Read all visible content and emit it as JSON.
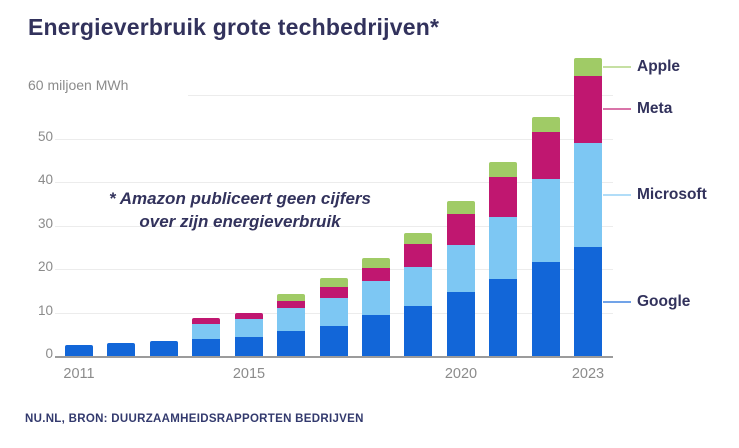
{
  "page": {
    "title": "Energieverbruik grote techbedrijven*"
  },
  "y_axis": {
    "unit_label": "60 miljoen MWh",
    "ticks": [
      0,
      10,
      20,
      30,
      40,
      50
    ],
    "top_gridline_value": 60
  },
  "x_axis": {
    "labels": [
      {
        "text": "2011",
        "index": 0
      },
      {
        "text": "2015",
        "index": 4
      },
      {
        "text": "2020",
        "index": 9
      },
      {
        "text": "2023",
        "index": 12
      }
    ]
  },
  "annotation": {
    "line1": "* Amazon publiceert geen cijfers",
    "line2": "over zijn energieverbruik"
  },
  "legend": {
    "items": [
      "Apple",
      "Meta",
      "Microsoft",
      "Google"
    ]
  },
  "source_note": "NU.NL, BRON: DUURZAAMHEIDSRAPPORTEN BEDRIJVEN",
  "colors": {
    "google": "#1266d8",
    "microsoft": "#7dc7f3",
    "meta": "#c01770",
    "apple": "#a0cb66",
    "title_text": "#32325c",
    "axis_text": "#8b8b8b",
    "gridline": "#ececec",
    "axis_line": "#9b9b9b"
  },
  "chart_data": {
    "type": "bar",
    "stacked": true,
    "title": "Energieverbruik grote techbedrijven*",
    "ylabel": "miljoen MWh",
    "ylim": [
      0,
      70
    ],
    "grid": true,
    "legend_position": "right",
    "categories": [
      2011,
      2012,
      2013,
      2014,
      2015,
      2016,
      2017,
      2018,
      2019,
      2020,
      2021,
      2022,
      2023
    ],
    "series": [
      {
        "name": "Google",
        "color": "#1266d8",
        "values": [
          2.5,
          3.0,
          3.4,
          4.0,
          4.4,
          5.8,
          6.9,
          9.4,
          11.5,
          14.7,
          17.8,
          21.6,
          25.0
        ]
      },
      {
        "name": "Microsoft",
        "color": "#7dc7f3",
        "values": [
          0,
          0,
          0,
          3.4,
          4.1,
          5.2,
          6.4,
          7.8,
          9.0,
          10.8,
          14.2,
          19.0,
          24.0
        ]
      },
      {
        "name": "Meta",
        "color": "#c01770",
        "values": [
          0,
          0,
          0,
          1.4,
          1.4,
          1.7,
          2.5,
          3.0,
          5.3,
          7.2,
          9.2,
          11.0,
          15.5
        ]
      },
      {
        "name": "Apple",
        "color": "#a0cb66",
        "values": [
          0,
          0,
          0,
          0,
          0,
          1.6,
          2.1,
          2.3,
          2.5,
          3.0,
          3.5,
          3.3,
          4.0
        ]
      }
    ]
  }
}
